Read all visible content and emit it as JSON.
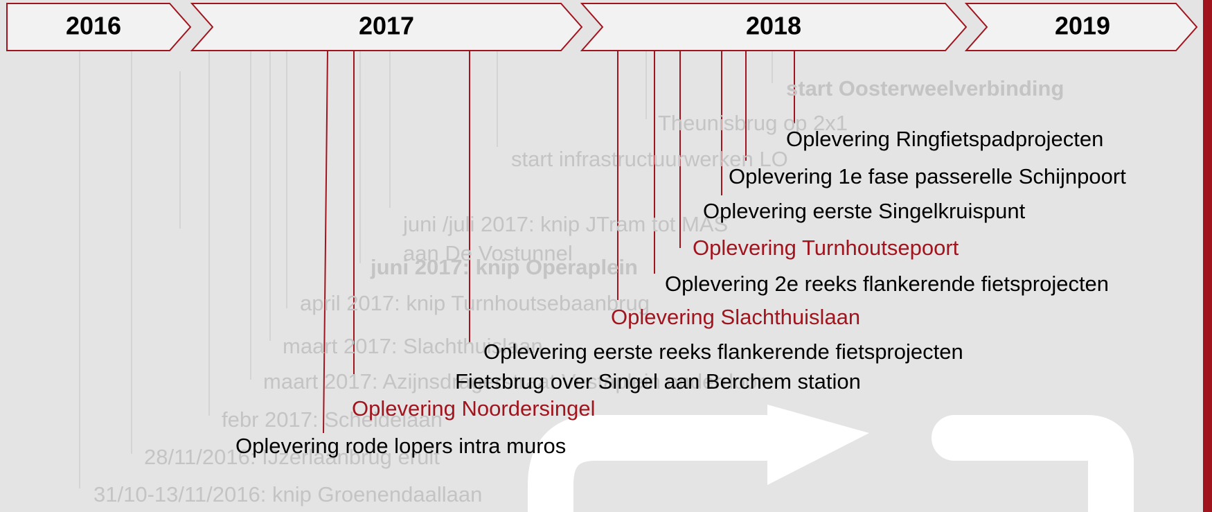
{
  "years": [
    "2016",
    "2017",
    "2018",
    "2019"
  ],
  "background_milestones": [
    {
      "label": "start Oosterweelverbinding",
      "bold": true
    },
    {
      "label": "Theunisbrug op 2x1",
      "bold": false
    },
    {
      "label": "start infrastructuurwerken LO",
      "bold": false
    },
    {
      "label": "juni /juli 2017: knip JTram tot MAS",
      "bold": false
    },
    {
      "label": "aan De Vostunnel",
      "bold": false
    },
    {
      "label": "juni 2017: knip Operaplein",
      "bold": true
    },
    {
      "label": "april 2017: knip Turnhoutsebaanbrug",
      "bold": false
    },
    {
      "label": "maart 2017: Slachthuislaan",
      "bold": false
    },
    {
      "label": "maart 2017: Azijnsdragerstraat Vestaplein onderdoor",
      "bold": false
    },
    {
      "label": "febr 2017: Scheldelaan",
      "bold": false
    },
    {
      "label": "28/11/2016: IJzerlaanbrug eruit",
      "bold": false
    },
    {
      "label": "31/10-13/11/2016: knip Groenendaallaan",
      "bold": false
    }
  ],
  "milestones": [
    {
      "label": "Oplevering Ringfietspadprojecten",
      "color": "#000000"
    },
    {
      "label": "Oplevering 1e fase passerelle Schijnpoort",
      "color": "#000000"
    },
    {
      "label": "Oplevering eerste Singelkruispunt",
      "color": "#000000"
    },
    {
      "label": "Oplevering Turnhoutsepoort",
      "color": "#a0141e"
    },
    {
      "label": "Oplevering 2e reeks flankerende fietsprojecten",
      "color": "#000000"
    },
    {
      "label": "Oplevering Slachthuislaan",
      "color": "#a0141e"
    },
    {
      "label": "Oplevering eerste reeks flankerende fietsprojecten",
      "color": "#000000"
    },
    {
      "label": "Fietsbrug over Singel aan Berchem station",
      "color": "#000000"
    },
    {
      "label": "Oplevering Noordersingel",
      "color": "#a0141e"
    },
    {
      "label": "Oplevering rode lopers intra muros",
      "color": "#000000"
    }
  ]
}
